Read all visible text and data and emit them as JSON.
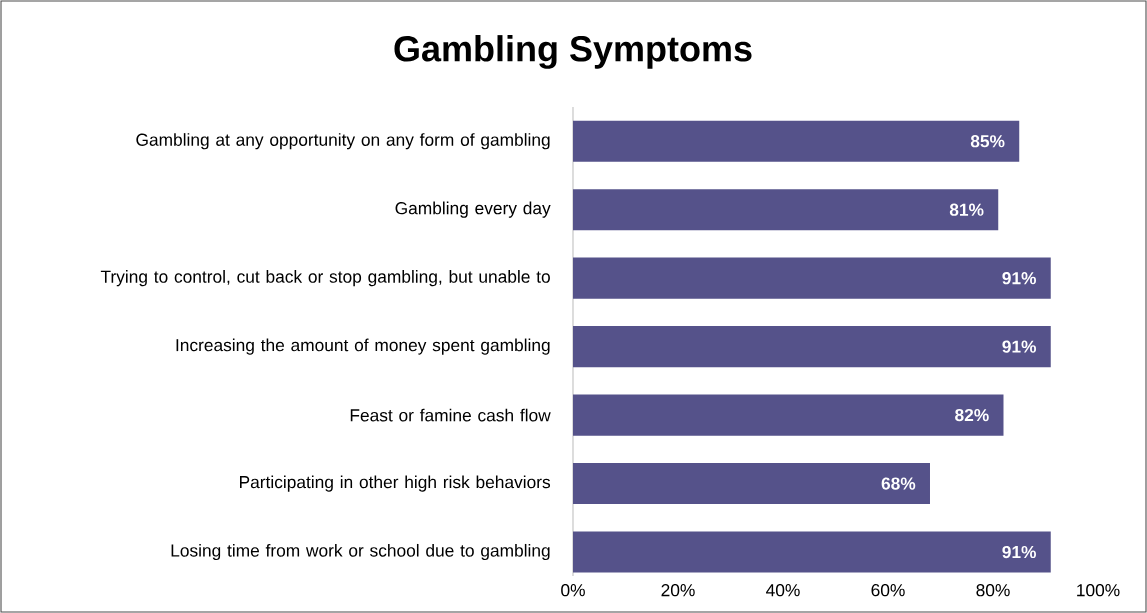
{
  "chart_data": {
    "type": "bar",
    "orientation": "horizontal",
    "title": "Gambling Symptoms",
    "categories": [
      "Gambling at any opportunity on any form of gambling",
      "Gambling every day",
      "Trying to control, cut back or stop gambling, but unable to",
      "Increasing the amount of money spent gambling",
      "Feast or famine cash flow",
      "Participating in other high risk behaviors",
      "Losing time from work or school due to gambling"
    ],
    "values": [
      85,
      81,
      91,
      91,
      82,
      68,
      91
    ],
    "value_labels": [
      "85%",
      "81%",
      "91%",
      "91%",
      "82%",
      "68%",
      "91%"
    ],
    "color": "#55528a",
    "xlim": [
      0,
      100
    ],
    "xticks": [
      {
        "value": 0,
        "label": "0%"
      },
      {
        "value": 20,
        "label": "20%"
      },
      {
        "value": 40,
        "label": "40%"
      },
      {
        "value": 60,
        "label": "60%"
      },
      {
        "value": 80,
        "label": "80%"
      },
      {
        "value": 100,
        "label": "100%"
      }
    ]
  }
}
